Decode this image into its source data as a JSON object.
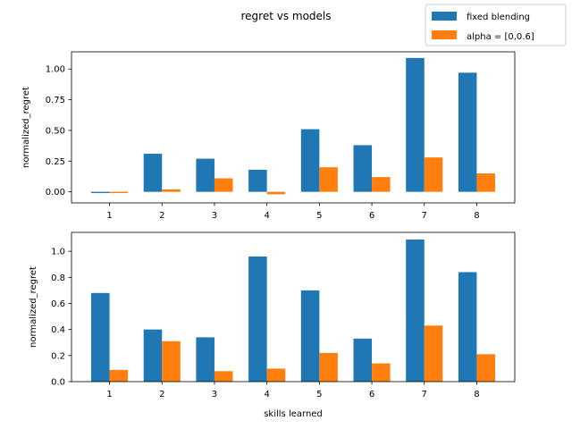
{
  "figure": {
    "title": "regret vs models"
  },
  "legend": {
    "placement": "top-right",
    "entries": [
      {
        "label": "fixed blending",
        "color": "#1f77b4"
      },
      {
        "label": "alpha = [0,0.6]",
        "color": "#ff7f0e"
      }
    ]
  },
  "chart_data": [
    {
      "type": "bar",
      "title": "",
      "xlabel": "",
      "ylabel": "normalized_regret",
      "categories": [
        "1",
        "2",
        "3",
        "4",
        "5",
        "6",
        "7",
        "8"
      ],
      "ylim": [
        -0.09,
        1.14
      ],
      "yticks": [
        0.0,
        0.25,
        0.5,
        0.75,
        1.0
      ],
      "ytick_labels": [
        "0.00",
        "0.25",
        "0.50",
        "0.75",
        "1.00"
      ],
      "series": [
        {
          "name": "fixed blending",
          "color": "#1f77b4",
          "values": [
            -0.01,
            0.31,
            0.27,
            0.18,
            0.51,
            0.38,
            1.09,
            0.97
          ]
        },
        {
          "name": "alpha = [0,0.6]",
          "color": "#ff7f0e",
          "values": [
            -0.01,
            0.02,
            0.11,
            -0.02,
            0.2,
            0.12,
            0.28,
            0.15
          ]
        }
      ]
    },
    {
      "type": "bar",
      "title": "",
      "xlabel": "skills learned",
      "ylabel": "normalized_regret",
      "categories": [
        "1",
        "2",
        "3",
        "4",
        "5",
        "6",
        "7",
        "8"
      ],
      "ylim": [
        0,
        1.145
      ],
      "yticks": [
        0.0,
        0.2,
        0.4,
        0.6,
        0.8,
        1.0
      ],
      "ytick_labels": [
        "0.0",
        "0.2",
        "0.4",
        "0.6",
        "0.8",
        "1.0"
      ],
      "series": [
        {
          "name": "fixed blending",
          "color": "#1f77b4",
          "values": [
            0.68,
            0.4,
            0.34,
            0.96,
            0.7,
            0.33,
            1.09,
            0.84
          ]
        },
        {
          "name": "alpha = [0,0.6]",
          "color": "#ff7f0e",
          "values": [
            0.09,
            0.31,
            0.08,
            0.1,
            0.22,
            0.14,
            0.43,
            0.21
          ]
        }
      ]
    }
  ]
}
